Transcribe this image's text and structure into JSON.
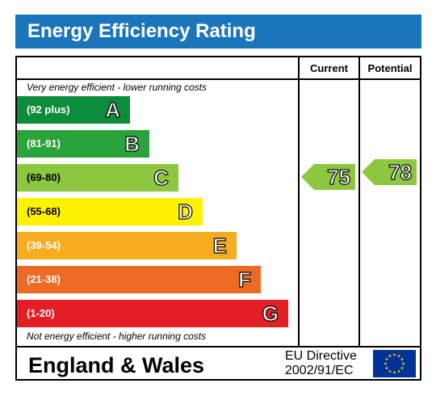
{
  "title": "Energy Efficiency Rating",
  "columns": {
    "current": "Current",
    "potential": "Potential"
  },
  "notes": {
    "top": "Very energy efficient - lower running costs",
    "bottom": "Not energy efficient - higher running costs"
  },
  "chart_data": {
    "type": "bar",
    "categories": [
      "A",
      "B",
      "C",
      "D",
      "E",
      "F",
      "G"
    ],
    "ranges": [
      "(92 plus)",
      "(81-91)",
      "(69-80)",
      "(55-68)",
      "(39-54)",
      "(21-38)",
      "(1-20)"
    ],
    "band_colors": [
      "#008054",
      "#19b459",
      "#8dce46",
      "#ffd500",
      "#fcaa65",
      "#ef8023",
      "#e9153b"
    ],
    "current": {
      "value": 75,
      "band": "C"
    },
    "potential": {
      "value": 78,
      "band": "C"
    }
  },
  "colors": {
    "title_bar": "#1b75bb",
    "band_a": "#0d8c3c",
    "band_b": "#2aa33b",
    "band_c": "#8dc63f",
    "band_d": "#fff200",
    "band_e": "#f6ac1e",
    "band_f": "#ec6a23",
    "band_g": "#e41e25"
  },
  "footer": {
    "country": "England & Wales",
    "directive_line1": "EU Directive",
    "directive_line2": "2002/91/EC"
  },
  "icons": {
    "flag": "eu-flag-icon"
  }
}
